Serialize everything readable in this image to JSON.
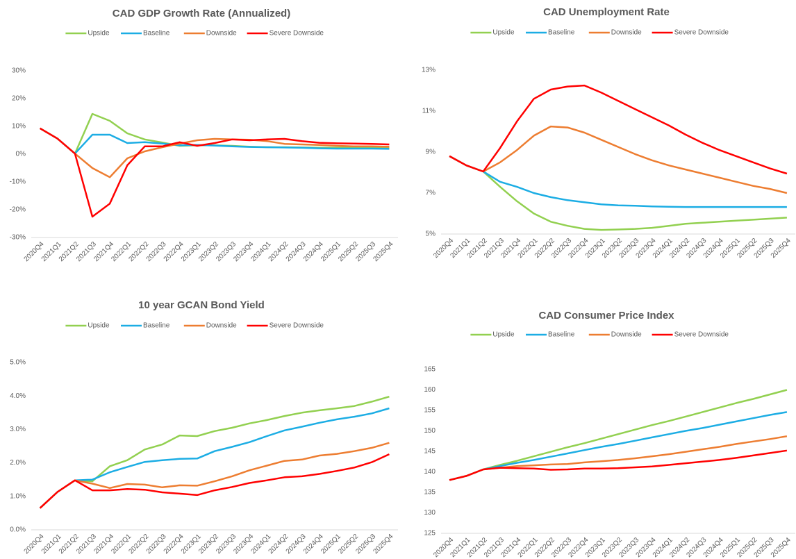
{
  "chart_data": [
    {
      "type": "line",
      "title": "CAD GDP Growth Rate (Annualized)",
      "categories": [
        "2020Q4",
        "2021Q1",
        "2021Q2",
        "2021Q3",
        "2021Q4",
        "2022Q1",
        "2022Q2",
        "2022Q3",
        "2022Q4",
        "2023Q1",
        "2023Q2",
        "2023Q3",
        "2023Q4",
        "2024Q1",
        "2024Q2",
        "2024Q3",
        "2024Q4",
        "2025Q1",
        "2025Q2",
        "2025Q3",
        "2025Q4"
      ],
      "series": [
        {
          "name": "Upside",
          "color": "#92d050",
          "values": [
            9.3,
            5.6,
            0.2,
            14.5,
            12,
            7.5,
            5.3,
            4.2,
            3,
            3.2,
            3.2,
            3,
            2.7,
            2.5,
            2.5,
            2.4,
            2.3,
            2.3,
            2.3,
            2.3,
            2.2
          ]
        },
        {
          "name": "Baseline",
          "color": "#1cade4",
          "values": [
            9.3,
            5.6,
            0.2,
            7,
            7,
            4,
            4.3,
            3.8,
            3.2,
            3.3,
            3.1,
            2.8,
            2.6,
            2.5,
            2.4,
            2.3,
            2.1,
            2,
            2,
            2,
            1.9
          ]
        },
        {
          "name": "Downside",
          "color": "#ed7d31",
          "values": [
            9.3,
            5.6,
            0.2,
            -5,
            -8.3,
            -1.5,
            1,
            2.5,
            3.8,
            5,
            5.5,
            5.3,
            5.2,
            4.7,
            3.7,
            3.5,
            3.3,
            3,
            2.8,
            2.8,
            2.7
          ]
        },
        {
          "name": "Severe Downside",
          "color": "#ff0000",
          "values": [
            9.3,
            5.6,
            0.2,
            -22.5,
            -17.8,
            -4,
            2.8,
            2.8,
            4.3,
            3,
            4,
            5.3,
            5,
            5.3,
            5.5,
            4.7,
            4.1,
            3.9,
            3.8,
            3.7,
            3.5
          ]
        }
      ],
      "ylim": [
        -30,
        30
      ],
      "yticks": [
        {
          "value": -30,
          "label": "-30%"
        },
        {
          "value": -20,
          "label": "-20%"
        },
        {
          "value": -10,
          "label": "-10%"
        },
        {
          "value": 0,
          "label": "0%"
        },
        {
          "value": 10,
          "label": "10%"
        },
        {
          "value": 20,
          "label": "20%"
        },
        {
          "value": 30,
          "label": "30%"
        }
      ]
    },
    {
      "type": "line",
      "title": "CAD Unemployment Rate",
      "categories": [
        "2020Q4",
        "2021Q1",
        "2021Q2",
        "2021Q3",
        "2021Q4",
        "2022Q1",
        "2022Q2",
        "2022Q3",
        "2022Q4",
        "2023Q1",
        "2023Q2",
        "2023Q3",
        "2023Q4",
        "2024Q1",
        "2024Q2",
        "2024Q3",
        "2024Q4",
        "2025Q1",
        "2025Q2",
        "2025Q3",
        "2025Q4"
      ],
      "series": [
        {
          "name": "Upside",
          "color": "#92d050",
          "values": [
            8.8,
            8.35,
            8.05,
            7.3,
            6.6,
            6,
            5.6,
            5.4,
            5.25,
            5.2,
            5.22,
            5.25,
            5.3,
            5.4,
            5.5,
            5.55,
            5.6,
            5.65,
            5.7,
            5.75,
            5.8
          ]
        },
        {
          "name": "Baseline",
          "color": "#1cade4",
          "values": [
            8.8,
            8.35,
            8.05,
            7.55,
            7.3,
            7,
            6.8,
            6.65,
            6.55,
            6.45,
            6.4,
            6.38,
            6.35,
            6.33,
            6.32,
            6.32,
            6.32,
            6.32,
            6.32,
            6.32,
            6.32
          ]
        },
        {
          "name": "Downside",
          "color": "#ed7d31",
          "values": [
            8.8,
            8.35,
            8.05,
            8.5,
            9.1,
            9.8,
            10.25,
            10.2,
            9.95,
            9.6,
            9.25,
            8.9,
            8.6,
            8.35,
            8.15,
            7.95,
            7.75,
            7.55,
            7.35,
            7.2,
            7
          ]
        },
        {
          "name": "Severe Downside",
          "color": "#ff0000",
          "values": [
            8.8,
            8.35,
            8.05,
            9.2,
            10.5,
            11.6,
            12.05,
            12.2,
            12.25,
            11.9,
            11.5,
            11.1,
            10.7,
            10.3,
            9.85,
            9.45,
            9.1,
            8.8,
            8.5,
            8.2,
            7.95
          ]
        }
      ],
      "ylim": [
        5,
        13
      ],
      "yticks": [
        {
          "value": 5,
          "label": "5%"
        },
        {
          "value": 7,
          "label": "7%"
        },
        {
          "value": 9,
          "label": "9%"
        },
        {
          "value": 11,
          "label": "11%"
        },
        {
          "value": 13,
          "label": "13%"
        }
      ]
    },
    {
      "type": "line",
      "title": "10 year GCAN Bond Yield",
      "categories": [
        "2020Q4",
        "2021Q1",
        "2021Q2",
        "2021Q3",
        "2021Q4",
        "2022Q1",
        "2022Q2",
        "2022Q3",
        "2022Q4",
        "2023Q1",
        "2023Q2",
        "2023Q3",
        "2023Q4",
        "2024Q1",
        "2024Q2",
        "2024Q3",
        "2024Q4",
        "2025Q1",
        "2025Q2",
        "2025Q3",
        "2025Q4"
      ],
      "series": [
        {
          "name": "Upside",
          "color": "#92d050",
          "values": [
            0.65,
            1.13,
            1.48,
            1.45,
            1.9,
            2.08,
            2.4,
            2.55,
            2.82,
            2.8,
            2.95,
            3.05,
            3.18,
            3.28,
            3.4,
            3.5,
            3.57,
            3.63,
            3.7,
            3.83,
            3.98
          ]
        },
        {
          "name": "Baseline",
          "color": "#1cade4",
          "values": [
            0.65,
            1.13,
            1.48,
            1.5,
            1.72,
            1.88,
            2.03,
            2.08,
            2.12,
            2.13,
            2.35,
            2.48,
            2.62,
            2.8,
            2.97,
            3.08,
            3.2,
            3.3,
            3.38,
            3.48,
            3.63
          ]
        },
        {
          "name": "Downside",
          "color": "#ed7d31",
          "values": [
            0.65,
            1.13,
            1.48,
            1.38,
            1.25,
            1.37,
            1.35,
            1.27,
            1.33,
            1.32,
            1.45,
            1.6,
            1.78,
            1.92,
            2.06,
            2.1,
            2.22,
            2.27,
            2.35,
            2.45,
            2.6
          ]
        },
        {
          "name": "Severe Downside",
          "color": "#ff0000",
          "values": [
            0.65,
            1.13,
            1.48,
            1.18,
            1.18,
            1.22,
            1.2,
            1.12,
            1.08,
            1.04,
            1.18,
            1.28,
            1.4,
            1.48,
            1.57,
            1.6,
            1.67,
            1.76,
            1.86,
            2.02,
            2.26
          ]
        }
      ],
      "ylim": [
        0,
        5
      ],
      "yticks": [
        {
          "value": 0,
          "label": "0.0%"
        },
        {
          "value": 1,
          "label": "1.0%"
        },
        {
          "value": 2,
          "label": "2.0%"
        },
        {
          "value": 3,
          "label": "3.0%"
        },
        {
          "value": 4,
          "label": "4.0%"
        },
        {
          "value": 5,
          "label": "5.0%"
        }
      ]
    },
    {
      "type": "line",
      "title": "CAD Consumer Price Index",
      "categories": [
        "2020Q4",
        "2021Q1",
        "2021Q2",
        "2021Q3",
        "2021Q4",
        "2022Q1",
        "2022Q2",
        "2022Q3",
        "2022Q4",
        "2023Q1",
        "2023Q2",
        "2023Q3",
        "2023Q4",
        "2024Q1",
        "2024Q2",
        "2024Q3",
        "2024Q4",
        "2025Q1",
        "2025Q2",
        "2025Q3",
        "2025Q4"
      ],
      "series": [
        {
          "name": "Upside",
          "color": "#92d050",
          "values": [
            138,
            139,
            140.6,
            141.7,
            142.7,
            143.8,
            144.9,
            146,
            147,
            148.1,
            149.2,
            150.3,
            151.4,
            152.4,
            153.5,
            154.6,
            155.7,
            156.8,
            157.8,
            158.9,
            160
          ]
        },
        {
          "name": "Baseline",
          "color": "#1cade4",
          "values": [
            138,
            139,
            140.6,
            141.4,
            142.2,
            142.9,
            143.7,
            144.5,
            145.3,
            146.1,
            146.8,
            147.6,
            148.4,
            149.2,
            150,
            150.7,
            151.5,
            152.3,
            153.1,
            153.9,
            154.6
          ]
        },
        {
          "name": "Downside",
          "color": "#ed7d31",
          "values": [
            138,
            139,
            140.6,
            141,
            141.4,
            141.6,
            141.8,
            141.9,
            142.3,
            142.6,
            142.9,
            143.3,
            143.8,
            144.3,
            144.9,
            145.5,
            146.1,
            146.8,
            147.4,
            148,
            148.7
          ]
        },
        {
          "name": "Severe Downside",
          "color": "#ff0000",
          "values": [
            138,
            139,
            140.6,
            141,
            140.9,
            140.8,
            140.5,
            140.6,
            140.8,
            140.8,
            140.9,
            141.1,
            141.3,
            141.7,
            142.1,
            142.5,
            142.9,
            143.4,
            144,
            144.6,
            145.2
          ]
        }
      ],
      "ylim": [
        125,
        165
      ],
      "yticks": [
        125,
        130,
        135,
        140,
        145,
        150,
        155,
        160,
        165
      ]
    }
  ]
}
